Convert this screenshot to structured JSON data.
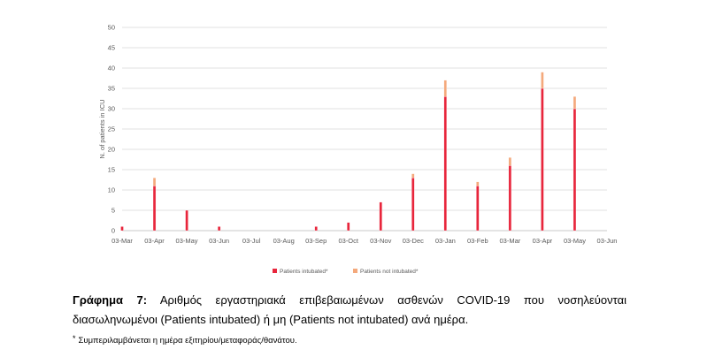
{
  "chart_data": {
    "type": "bar",
    "stacked": true,
    "ylabel": "N. of patients in ICU",
    "ylim": [
      0,
      50
    ],
    "yticks": [
      0,
      5,
      10,
      15,
      20,
      25,
      30,
      35,
      40,
      45,
      50
    ],
    "xticks": [
      "03-Mar",
      "03-Apr",
      "03-May",
      "03-Jun",
      "03-Jul",
      "03-Aug",
      "03-Sep",
      "03-Oct",
      "03-Nov",
      "03-Dec",
      "03-Jan",
      "03-Feb",
      "03-Mar",
      "03-Apr",
      "03-May",
      "03-Jun"
    ],
    "gridlines": true,
    "legend_position": "bottom",
    "colors": {
      "intubated": "#e8263c",
      "not_intubated": "#f4a97c",
      "bar_stroke": "#ffffff"
    },
    "series": [
      {
        "name": "Patients intubated*",
        "points": [
          [
            "03-Mar",
            1
          ],
          [
            "03-Apr",
            11
          ],
          [
            "03-May",
            5
          ],
          [
            "03-Jun",
            1
          ],
          [
            "03-Sep",
            1
          ],
          [
            "03-Oct",
            2
          ],
          [
            "03-Nov",
            7
          ],
          [
            "03-Dec",
            13
          ],
          [
            "03-Jan",
            33
          ],
          [
            "03-Feb",
            11
          ],
          [
            "03-Mar",
            16
          ],
          [
            "03-Apr",
            35
          ],
          [
            "03-May",
            30
          ]
        ]
      },
      {
        "name": "Patients not intubated*",
        "points": [
          [
            "03-Mar",
            0
          ],
          [
            "03-Apr",
            2
          ],
          [
            "03-May",
            0
          ],
          [
            "03-Jun",
            0
          ],
          [
            "03-Sep",
            0
          ],
          [
            "03-Oct",
            0
          ],
          [
            "03-Nov",
            0
          ],
          [
            "03-Dec",
            1
          ],
          [
            "03-Jan",
            4
          ],
          [
            "03-Feb",
            1
          ],
          [
            "03-Mar",
            2
          ],
          [
            "03-Apr",
            4
          ],
          [
            "03-May",
            3
          ]
        ]
      }
    ],
    "legend": [
      "Patients intubated*",
      "Patients not intubated*"
    ]
  },
  "caption": {
    "label": "Γράφημα 7:",
    "text": "Αριθμός εργαστηριακά επιβεβαιωμένων ασθενών COVID-19 που νοσηλεύονται διασωληνωμένοι (Patients intubated) ή μη (Patients not intubated) ανά ημέρα."
  },
  "footnote": {
    "marker": "*",
    "text": "Συμπεριλαμβάνεται η ημέρα εξιτηρίου/μεταφοράς/θανάτου."
  }
}
